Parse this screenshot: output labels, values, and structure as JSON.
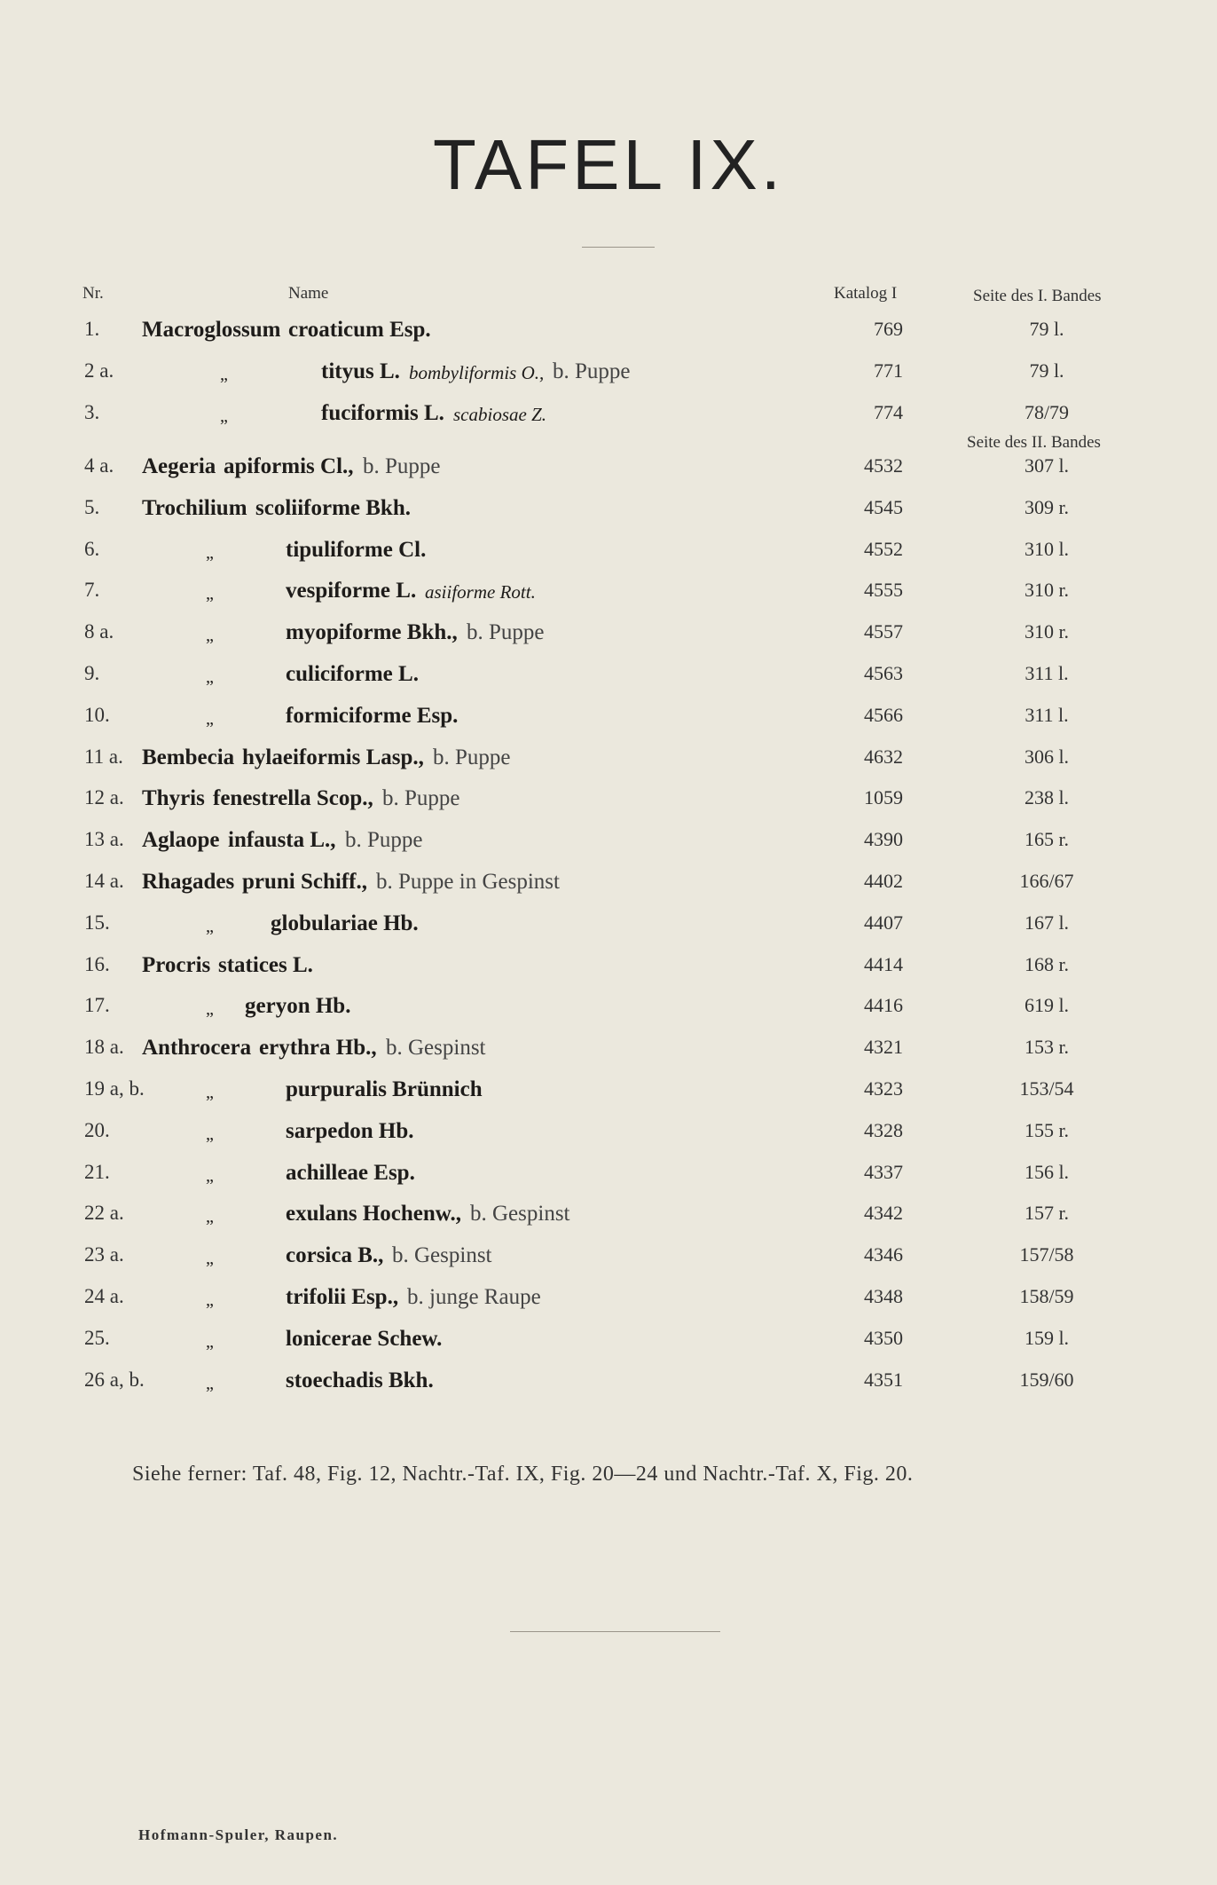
{
  "title": "TAFEL IX.",
  "headers": {
    "nr": "Nr.",
    "name": "Name",
    "katalog": "Katalog I",
    "seite1": "Seite des I. Bandes",
    "seite2": "Seite des II. Bandes"
  },
  "ditto_mark": "„",
  "rows": [
    {
      "nr": "1.",
      "genus": "Macroglossum",
      "ditto": false,
      "species": "croaticum Esp.",
      "synonym": "",
      "note": "",
      "katalog": "769",
      "seite": "79 l."
    },
    {
      "nr": "2 a.",
      "genus": "",
      "ditto": true,
      "species": "tityus L.",
      "synonym": "bombyliformis O.,",
      "note": "b. Puppe",
      "katalog": "771",
      "seite": "79 l."
    },
    {
      "nr": "3.",
      "genus": "",
      "ditto": true,
      "species": "fuciformis L.",
      "synonym": "scabiosae Z.",
      "note": "",
      "katalog": "774",
      "seite": "78/79"
    },
    {
      "nr": "4 a.",
      "genus": "Aegeria",
      "ditto": false,
      "species": "apiformis Cl.,",
      "synonym": "",
      "note": "b. Puppe",
      "katalog": "4532",
      "seite": "307 l."
    },
    {
      "nr": "5.",
      "genus": "Trochilium",
      "ditto": false,
      "species": "scoliiforme Bkh.",
      "synonym": "",
      "note": "",
      "katalog": "4545",
      "seite": "309 r."
    },
    {
      "nr": "6.",
      "genus": "",
      "ditto": true,
      "species": "tipuliforme Cl.",
      "synonym": "",
      "note": "",
      "katalog": "4552",
      "seite": "310 l."
    },
    {
      "nr": "7.",
      "genus": "",
      "ditto": true,
      "species": "vespiforme L.",
      "synonym": "asiiforme Rott.",
      "note": "",
      "katalog": "4555",
      "seite": "310 r."
    },
    {
      "nr": "8 a.",
      "genus": "",
      "ditto": true,
      "species": "myopiforme Bkh.,",
      "synonym": "",
      "note": "b. Puppe",
      "katalog": "4557",
      "seite": "310 r."
    },
    {
      "nr": "9.",
      "genus": "",
      "ditto": true,
      "species": "culiciforme L.",
      "synonym": "",
      "note": "",
      "katalog": "4563",
      "seite": "311 l."
    },
    {
      "nr": "10.",
      "genus": "",
      "ditto": true,
      "species": "formiciforme Esp.",
      "synonym": "",
      "note": "",
      "katalog": "4566",
      "seite": "311 l."
    },
    {
      "nr": "11 a.",
      "genus": "Bembecia",
      "ditto": false,
      "species": "hylaeiformis Lasp.,",
      "synonym": "",
      "note": "b. Puppe",
      "katalog": "4632",
      "seite": "306 l."
    },
    {
      "nr": "12 a.",
      "genus": "Thyris",
      "ditto": false,
      "species": "fenestrella Scop.,",
      "synonym": "",
      "note": "b. Puppe",
      "katalog": "1059",
      "seite": "238 l."
    },
    {
      "nr": "13 a.",
      "genus": "Aglaope",
      "ditto": false,
      "species": "infausta L.,",
      "synonym": "",
      "note": "b. Puppe",
      "katalog": "4390",
      "seite": "165 r."
    },
    {
      "nr": "14 a.",
      "genus": "Rhagades",
      "ditto": false,
      "species": "pruni Schiff.,",
      "synonym": "",
      "note": "b. Puppe in Gespinst",
      "katalog": "4402",
      "seite": "166/67"
    },
    {
      "nr": "15.",
      "genus": "",
      "ditto": true,
      "species": "globulariae Hb.",
      "synonym": "",
      "note": "",
      "katalog": "4407",
      "seite": "167 l."
    },
    {
      "nr": "16.",
      "genus": "Procris",
      "ditto": false,
      "species": "statices L.",
      "synonym": "",
      "note": "",
      "katalog": "4414",
      "seite": "168 r."
    },
    {
      "nr": "17.",
      "genus": "",
      "ditto": true,
      "species": "geryon Hb.",
      "synonym": "",
      "note": "",
      "katalog": "4416",
      "seite": "619 l."
    },
    {
      "nr": "18 a.",
      "genus": "Anthrocera",
      "ditto": false,
      "species": "erythra Hb.,",
      "synonym": "",
      "note": "b. Gespinst",
      "katalog": "4321",
      "seite": "153 r."
    },
    {
      "nr": "19 a, b.",
      "genus": "",
      "ditto": true,
      "species": "purpuralis Brünnich",
      "synonym": "",
      "note": "",
      "katalog": "4323",
      "seite": "153/54"
    },
    {
      "nr": "20.",
      "genus": "",
      "ditto": true,
      "species": "sarpedon Hb.",
      "synonym": "",
      "note": "",
      "katalog": "4328",
      "seite": "155 r."
    },
    {
      "nr": "21.",
      "genus": "",
      "ditto": true,
      "species": "achilleae Esp.",
      "synonym": "",
      "note": "",
      "katalog": "4337",
      "seite": "156 l."
    },
    {
      "nr": "22 a.",
      "genus": "",
      "ditto": true,
      "species": "exulans Hochenw.,",
      "synonym": "",
      "note": "b. Gespinst",
      "katalog": "4342",
      "seite": "157 r."
    },
    {
      "nr": "23 a.",
      "genus": "",
      "ditto": true,
      "species": "corsica B.,",
      "synonym": "",
      "note": "b. Gespinst",
      "katalog": "4346",
      "seite": "157/58"
    },
    {
      "nr": "24 a.",
      "genus": "",
      "ditto": true,
      "species": "trifolii Esp.,",
      "synonym": "",
      "note": "b. junge Raupe",
      "katalog": "4348",
      "seite": "158/59"
    },
    {
      "nr": "25.",
      "genus": "",
      "ditto": true,
      "species": "lonicerae Schew.",
      "synonym": "",
      "note": "",
      "katalog": "4350",
      "seite": "159 l."
    },
    {
      "nr": "26 a, b.",
      "genus": "",
      "ditto": true,
      "species": "stoechadis Bkh.",
      "synonym": "",
      "note": "",
      "katalog": "4351",
      "seite": "159/60"
    }
  ],
  "note": "Siehe ferner: Taf. 48, Fig. 12, Nachtr.-Taf. IX, Fig. 20—24 und Nachtr.-Taf. X, Fig. 20.",
  "footer": "Hofmann-Spuler, Raupen."
}
